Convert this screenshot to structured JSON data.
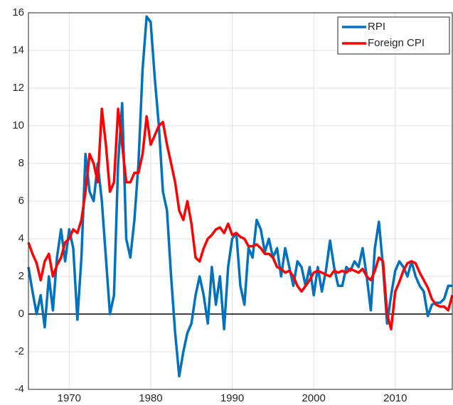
{
  "chart_data": {
    "type": "line",
    "x": [
      1965,
      1965.5,
      1966,
      1966.5,
      1967,
      1967.5,
      1968,
      1968.5,
      1969,
      1969.5,
      1970,
      1970.5,
      1971,
      1971.5,
      1972,
      1972.5,
      1973,
      1973.5,
      1974,
      1974.5,
      1975,
      1975.5,
      1976,
      1976.5,
      1977,
      1977.5,
      1978,
      1978.5,
      1979,
      1979.5,
      1980,
      1980.5,
      1981,
      1981.5,
      1982,
      1982.5,
      1983,
      1983.5,
      1984,
      1984.5,
      1985,
      1985.5,
      1986,
      1986.5,
      1987,
      1987.5,
      1988,
      1988.5,
      1989,
      1989.5,
      1990,
      1990.5,
      1991,
      1991.5,
      1992,
      1992.5,
      1993,
      1993.5,
      1994,
      1994.5,
      1995,
      1995.5,
      1996,
      1996.5,
      1997,
      1997.5,
      1998,
      1998.5,
      1999,
      1999.5,
      2000,
      2000.5,
      2001,
      2001.5,
      2002,
      2002.5,
      2003,
      2003.5,
      2004,
      2004.5,
      2005,
      2005.5,
      2006,
      2006.5,
      2007,
      2007.5,
      2008,
      2008.5,
      2009,
      2009.5,
      2010,
      2010.5,
      2011,
      2011.5,
      2012,
      2012.5,
      2013,
      2013.5,
      2014,
      2014.5,
      2015,
      2015.5,
      2016,
      2016.5,
      2017
    ],
    "series": [
      {
        "name": "RPI",
        "color": "#0072bd",
        "values": [
          2.5,
          1.2,
          0,
          1,
          -0.7,
          2,
          0.2,
          3,
          4.5,
          2.8,
          4.5,
          3.5,
          -0.3,
          3,
          8.5,
          6.5,
          6,
          8,
          6,
          3,
          0,
          1,
          8,
          11.2,
          4,
          3,
          5,
          8,
          13,
          15.8,
          15.5,
          12.5,
          10,
          6.5,
          5.5,
          2,
          -1,
          -3.3,
          -2,
          -1,
          -0.5,
          1,
          2,
          1,
          -0.5,
          2.5,
          0.5,
          2,
          -0.8,
          2.5,
          4,
          4.3,
          1.5,
          0.5,
          3.5,
          3,
          5,
          4.5,
          3.3,
          4,
          3,
          3.5,
          2,
          3.5,
          2.5,
          1.5,
          2.8,
          2.5,
          1.5,
          2.5,
          1,
          2.5,
          1.2,
          2.3,
          3.9,
          2.5,
          1.5,
          1.5,
          2.5,
          2.3,
          2.8,
          2.5,
          3.5,
          2,
          0.2,
          3.5,
          4.9,
          2.5,
          -0.5,
          1,
          2.3,
          2.8,
          2.5,
          2,
          2.8,
          2,
          1.5,
          1.2,
          -0.1,
          0.5,
          0.6,
          0.6,
          0.8,
          1.5,
          1.5
        ]
      },
      {
        "name": "Foreign CPI",
        "color": "#ff0000",
        "values": [
          3.8,
          3.2,
          2.7,
          1.8,
          2.8,
          3.2,
          2,
          2.6,
          3,
          3.8,
          4,
          4.5,
          4.3,
          5,
          6.5,
          8.5,
          8,
          7,
          10.9,
          9,
          6.5,
          7,
          10.9,
          9,
          7,
          7,
          7.5,
          7.5,
          8.5,
          10.5,
          9,
          9.5,
          10,
          10.2,
          9,
          8,
          7,
          5.5,
          5,
          6,
          4.8,
          3,
          2.8,
          3.5,
          4,
          4.2,
          4.5,
          4.6,
          4.3,
          4.8,
          4.2,
          4.3,
          4.1,
          4,
          3.6,
          3.6,
          3.7,
          3.5,
          3.2,
          3.2,
          3,
          2.5,
          2.4,
          2.2,
          2.3,
          2,
          1.5,
          1.2,
          1.5,
          1.8,
          2.2,
          2.3,
          2.2,
          2.1,
          2,
          2.3,
          2.2,
          2.3,
          2.2,
          2.4,
          2.3,
          2.2,
          2.4,
          2,
          1.8,
          2.3,
          3,
          2.8,
          0,
          -0.8,
          1.2,
          1.7,
          2.3,
          2.7,
          2.8,
          2.7,
          2.2,
          1.8,
          1.4,
          0.8,
          0.5,
          0.4,
          0.4,
          0.2,
          1
        ]
      }
    ],
    "xlim": [
      1965,
      2017
    ],
    "ylim": [
      -4,
      16
    ],
    "xticks": [
      1970,
      1980,
      1990,
      2000,
      2010
    ],
    "yticks": [
      -4,
      -2,
      0,
      2,
      4,
      6,
      8,
      10,
      12,
      14,
      16
    ],
    "grid": true,
    "reference_line": 0,
    "legend": "top-right"
  }
}
